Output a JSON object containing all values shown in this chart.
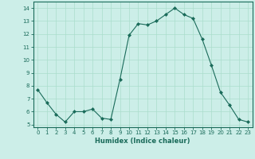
{
  "x": [
    0,
    1,
    2,
    3,
    4,
    5,
    6,
    7,
    8,
    9,
    10,
    11,
    12,
    13,
    14,
    15,
    16,
    17,
    18,
    19,
    20,
    21,
    22,
    23
  ],
  "y": [
    7.7,
    6.7,
    5.8,
    5.2,
    6.0,
    6.0,
    6.2,
    5.5,
    5.4,
    8.5,
    11.9,
    12.8,
    12.7,
    13.0,
    13.5,
    14.0,
    13.5,
    13.2,
    11.6,
    9.6,
    7.5,
    6.5,
    5.4,
    5.2
  ],
  "line_color": "#1a6b5a",
  "marker": "D",
  "marker_size": 2,
  "bg_color": "#cceee8",
  "grid_color": "#aaddcc",
  "xlabel": "Humidex (Indice chaleur)",
  "xlim": [
    -0.5,
    23.5
  ],
  "ylim": [
    4.8,
    14.5
  ],
  "yticks": [
    5,
    6,
    7,
    8,
    9,
    10,
    11,
    12,
    13,
    14
  ],
  "xticks": [
    0,
    1,
    2,
    3,
    4,
    5,
    6,
    7,
    8,
    9,
    10,
    11,
    12,
    13,
    14,
    15,
    16,
    17,
    18,
    19,
    20,
    21,
    22,
    23
  ]
}
